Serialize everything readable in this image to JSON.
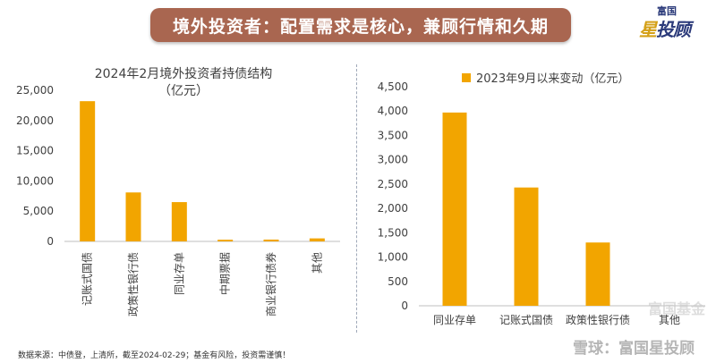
{
  "header": {
    "title": "境外投资者：配置需求是核心，兼顾行情和久期"
  },
  "logo": {
    "top": "富国",
    "main_a": "星",
    "main_b": "投顾"
  },
  "colors": {
    "bar": "#f2a500",
    "axis": "#bfbfbf",
    "text": "#404040",
    "title_bg": "#a96650"
  },
  "chart_data": [
    {
      "type": "bar",
      "title": "2024年2月境外投资者持债结构",
      "subtitle": "（亿元）",
      "categories": [
        "记账式国债",
        "政策性银行债",
        "同业存单",
        "中期票据",
        "商业银行债券",
        "其他"
      ],
      "values": [
        23200,
        8100,
        6500,
        280,
        300,
        500
      ],
      "ylim": [
        0,
        25000
      ],
      "yticks": [
        "0",
        "5,000",
        "10,000",
        "15,000",
        "20,000",
        "25,000"
      ],
      "ytick_values": [
        0,
        5000,
        10000,
        15000,
        20000,
        25000
      ],
      "grid": false
    },
    {
      "type": "bar",
      "legend": "2023年9月以来变动（亿元）",
      "legend_position": "top",
      "categories": [
        "同业存单",
        "记账式国债",
        "政策性银行债",
        "其他"
      ],
      "values": [
        3970,
        2430,
        1300,
        0
      ],
      "ylim": [
        0,
        4500
      ],
      "yticks": [
        "0",
        "500",
        "1,000",
        "1,500",
        "2,000",
        "2,500",
        "3,000",
        "3,500",
        "4,000",
        "4,500"
      ],
      "ytick_values": [
        0,
        500,
        1000,
        1500,
        2000,
        2500,
        3000,
        3500,
        4000,
        4500
      ],
      "grid": false
    }
  ],
  "footer": {
    "source": "数据来源：中债登，上清所，截至2024-02-29；基金有风险，投资需谨慎！"
  },
  "watermark": {
    "text": "雪球：富国星投顾",
    "secondary": "富国基金"
  }
}
